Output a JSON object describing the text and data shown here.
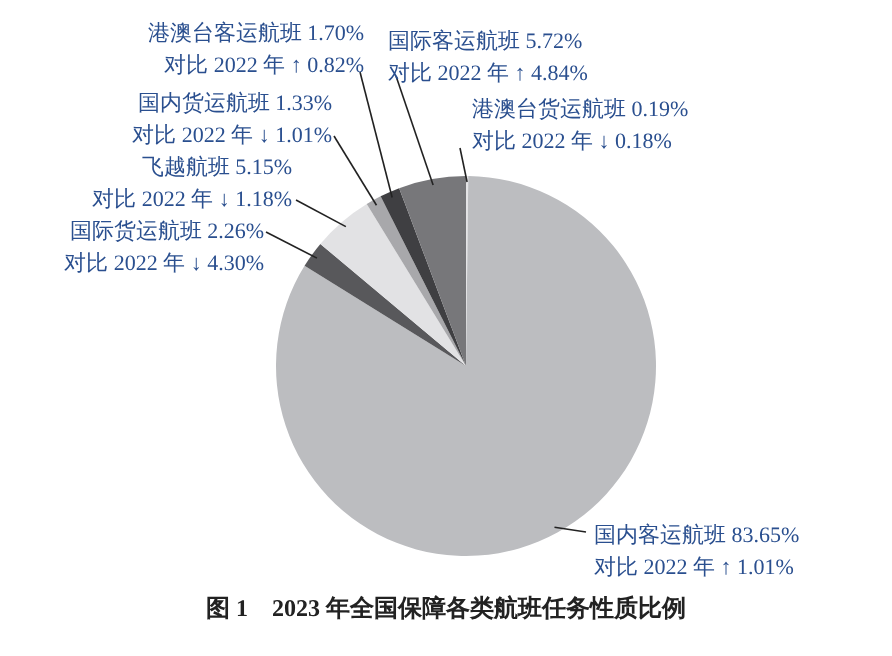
{
  "chart_data": {
    "type": "pie",
    "title": "图 1　2023 年全国保障各类航班任务性质比例",
    "categories": [
      "港澳台货运航班",
      "国内客运航班",
      "国际货运航班",
      "飞越航班",
      "国内货运航班",
      "港澳台客运航班",
      "国际客运航班"
    ],
    "values": [
      0.19,
      83.65,
      2.26,
      5.15,
      1.33,
      1.7,
      5.72
    ],
    "value_labels": [
      "0.19%",
      "83.65%",
      "2.26%",
      "5.15%",
      "1.33%",
      "1.70%",
      "5.72%"
    ],
    "colors": [
      "#e4e4e6",
      "#bcbdc0",
      "#58585b",
      "#e2e2e4",
      "#a8a8ab",
      "#3f3f42",
      "#77777a"
    ],
    "annotations": [
      "对比 2022 年 ↓ 0.18%",
      "对比 2022 年 ↑ 1.01%",
      "对比 2022 年 ↓ 4.30%",
      "对比 2022 年 ↓ 1.18%",
      "对比 2022 年 ↓ 1.01%",
      "对比 2022 年 ↑ 0.82%",
      "对比 2022 年 ↑ 4.84%"
    ]
  }
}
